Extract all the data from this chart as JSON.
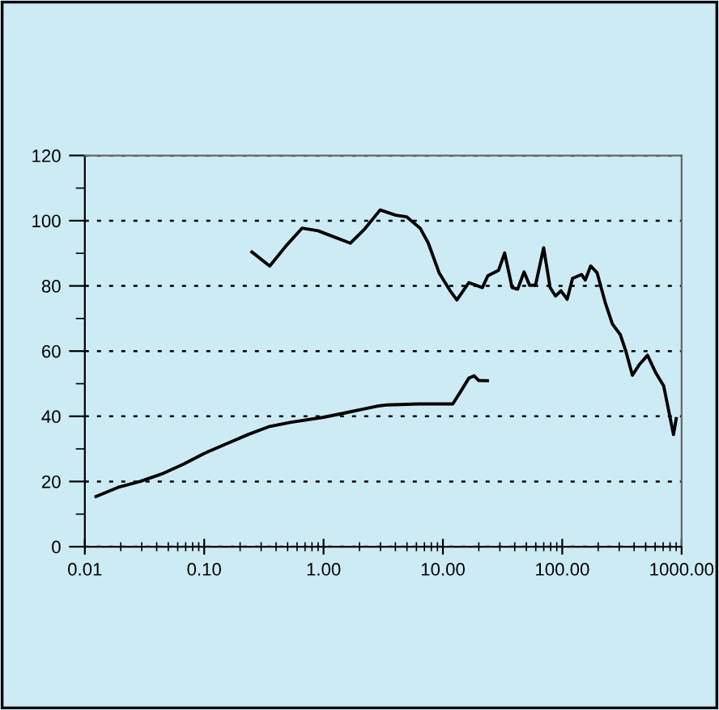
{
  "chart_data": {
    "type": "line",
    "log": "x",
    "grid": "y",
    "line_style": "solid",
    "marker": "none",
    "xlim": [
      0.01,
      1000
    ],
    "xticks": [
      {
        "value": 0.01,
        "label": "0.01"
      },
      {
        "value": 0.1,
        "label": "0.10"
      },
      {
        "value": 1,
        "label": "1.00"
      },
      {
        "value": 10,
        "label": "10.00"
      },
      {
        "value": 100,
        "label": "100.00"
      },
      {
        "value": 1000,
        "label": "1000.00"
      }
    ],
    "ylim": [
      0,
      120
    ],
    "yticks": [
      0,
      20,
      40,
      60,
      80,
      100,
      120
    ],
    "series": [
      {
        "color": "#000000",
        "x": [
          0.251,
          0.354,
          0.483,
          0.66,
          0.9,
          1.23,
          1.68,
          2.18,
          2.98,
          4.03,
          4.96,
          6.45,
          7.55,
          9.3,
          11.5,
          13.1,
          16.5,
          21.4,
          23.8,
          29.3,
          32.9,
          38,
          42.3,
          47.9,
          53.2,
          59.7,
          69.8,
          79.1,
          87.8,
          97.5,
          110,
          122,
          145,
          156,
          173,
          196,
          229,
          263,
          307,
          341,
          387,
          443,
          518,
          606,
          708,
          855,
          901
        ],
        "values": [
          90.4,
          86.1,
          92.2,
          97.7,
          96.9,
          95,
          93.1,
          97.2,
          103.3,
          101.7,
          101.2,
          97.7,
          93.1,
          84,
          78.5,
          75.7,
          81,
          79.5,
          83.1,
          84.8,
          90.1,
          79.5,
          79,
          84.3,
          80.2,
          80.2,
          91.7,
          79.5,
          76.9,
          78.5,
          75.9,
          82.3,
          83.5,
          81.8,
          86.1,
          84,
          74.9,
          68.3,
          65,
          60,
          52.6,
          55.9,
          58.7,
          53.4,
          49.3,
          34.4,
          39.3
        ]
      },
      {
        "color": "#000000",
        "x": [
          0.0124,
          0.019,
          0.029,
          0.044,
          0.067,
          0.1,
          0.154,
          0.233,
          0.354,
          0.536,
          1.0,
          1.5,
          2.8,
          3.44,
          6.45,
          12.1,
          14.1,
          16.5,
          18.3,
          19.9,
          23.6
        ],
        "values": [
          15.4,
          18.2,
          20,
          22.3,
          25.3,
          28.6,
          31.6,
          34.4,
          36.9,
          38.2,
          39.7,
          41,
          43.1,
          43.5,
          43.8,
          43.8,
          47.6,
          51.7,
          52.4,
          51,
          50.9
        ]
      }
    ]
  }
}
